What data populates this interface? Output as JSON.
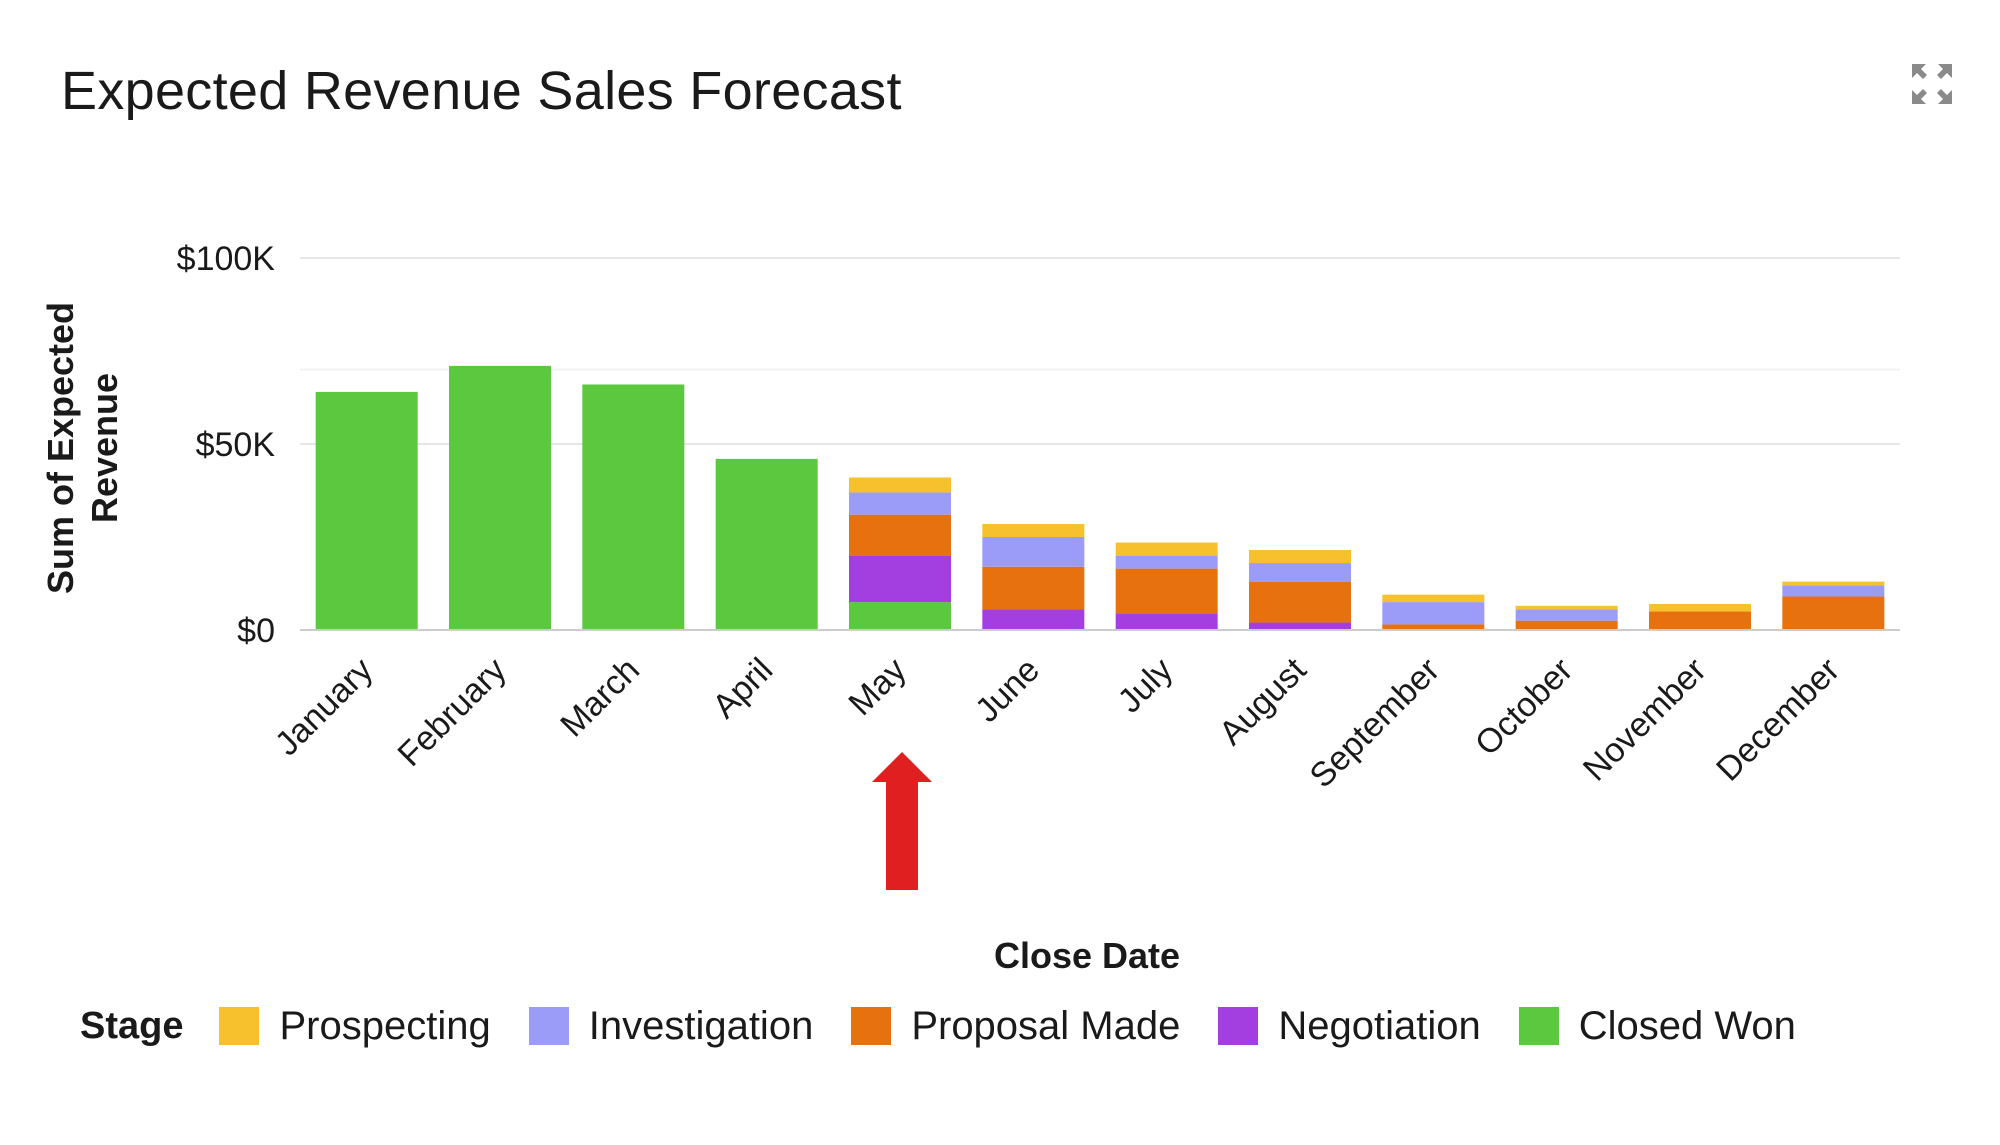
{
  "header": {
    "title": "Expected Revenue Sales Forecast",
    "expand_icon": "expand-icon"
  },
  "chart_data": {
    "type": "bar",
    "stacked": true,
    "title": "Expected Revenue Sales Forecast",
    "xlabel": "Close Date",
    "ylabel": "Sum of Expected Revenue",
    "ylim": [
      0,
      100000
    ],
    "yticks": [
      {
        "value": 0,
        "label": "$0"
      },
      {
        "value": 50000,
        "label": "$50K"
      },
      {
        "value": 100000,
        "label": "$100K"
      }
    ],
    "grid": true,
    "legend_title": "Stage",
    "legend_position": "bottom",
    "categories": [
      "January",
      "February",
      "March",
      "April",
      "May",
      "June",
      "July",
      "August",
      "September",
      "October",
      "November",
      "December"
    ],
    "series": [
      {
        "name": "Closed Won",
        "color": "#5cc83f",
        "values": [
          64000,
          71000,
          66000,
          46000,
          7500,
          0,
          0,
          0,
          0,
          0,
          0,
          0
        ]
      },
      {
        "name": "Negotiation",
        "color": "#a33ee0",
        "values": [
          0,
          0,
          0,
          0,
          12500,
          5500,
          4500,
          2000,
          0,
          0,
          0,
          0
        ]
      },
      {
        "name": "Proposal Made",
        "color": "#e8710f",
        "values": [
          0,
          0,
          0,
          0,
          11000,
          11500,
          12000,
          11000,
          1500,
          2500,
          5000,
          9000
        ]
      },
      {
        "name": "Investigation",
        "color": "#9b9cf7",
        "values": [
          0,
          0,
          0,
          0,
          6000,
          8000,
          3500,
          5000,
          6000,
          3000,
          0,
          3000
        ]
      },
      {
        "name": "Prospecting",
        "color": "#f7c12e",
        "values": [
          0,
          0,
          0,
          0,
          4000,
          3500,
          3500,
          3500,
          2000,
          1000,
          2000,
          1000
        ]
      }
    ],
    "legend_order": [
      "Prospecting",
      "Investigation",
      "Proposal Made",
      "Negotiation",
      "Closed Won"
    ]
  },
  "annotation": {
    "type": "arrow",
    "color": "#e02020",
    "points_to": "May"
  }
}
